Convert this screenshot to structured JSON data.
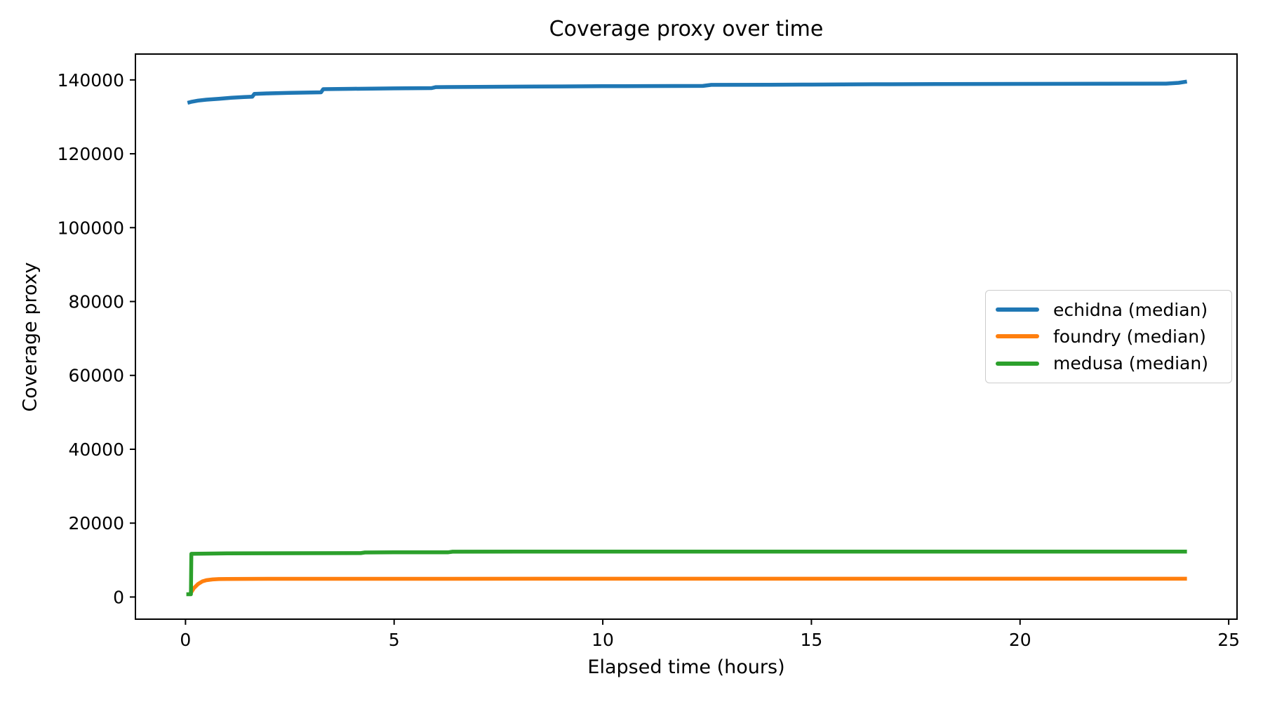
{
  "figure": {
    "title": "Coverage proxy over time",
    "xlabel": "Elapsed time (hours)",
    "ylabel": "Coverage proxy"
  },
  "chart_data": {
    "type": "line",
    "title": "Coverage proxy over time",
    "xlabel": "Elapsed time (hours)",
    "ylabel": "Coverage proxy",
    "xlim": [
      -1.2,
      25.2
    ],
    "ylim": [
      -6000,
      147000
    ],
    "xticks": [
      0,
      5,
      10,
      15,
      20,
      25
    ],
    "yticks": [
      0,
      20000,
      40000,
      60000,
      80000,
      100000,
      120000,
      140000
    ],
    "grid": false,
    "legend_position": "center right",
    "series": [
      {
        "name": "echidna (median)",
        "color": "#1f77b4",
        "points": [
          [
            0.05,
            133800
          ],
          [
            0.15,
            134100
          ],
          [
            0.3,
            134400
          ],
          [
            0.5,
            134650
          ],
          [
            0.8,
            134900
          ],
          [
            1.1,
            135150
          ],
          [
            1.4,
            135350
          ],
          [
            1.6,
            135450
          ],
          [
            1.65,
            136200
          ],
          [
            2.0,
            136350
          ],
          [
            2.5,
            136500
          ],
          [
            3.0,
            136600
          ],
          [
            3.25,
            136650
          ],
          [
            3.3,
            137500
          ],
          [
            4.0,
            137600
          ],
          [
            5.0,
            137700
          ],
          [
            5.9,
            137780
          ],
          [
            6.0,
            138050
          ],
          [
            7.0,
            138120
          ],
          [
            8.0,
            138180
          ],
          [
            9.0,
            138240
          ],
          [
            10.0,
            138290
          ],
          [
            11.0,
            138330
          ],
          [
            12.4,
            138380
          ],
          [
            12.6,
            138650
          ],
          [
            14.0,
            138700
          ],
          [
            15.0,
            138740
          ],
          [
            16.5,
            138820
          ],
          [
            18.0,
            138870
          ],
          [
            20.0,
            138920
          ],
          [
            22.0,
            138960
          ],
          [
            23.5,
            139000
          ],
          [
            23.8,
            139200
          ],
          [
            24.0,
            139550
          ]
        ]
      },
      {
        "name": "foundry (median)",
        "color": "#ff7f0e",
        "points": [
          [
            0.1,
            700
          ],
          [
            0.15,
            1500
          ],
          [
            0.2,
            2400
          ],
          [
            0.3,
            3500
          ],
          [
            0.4,
            4200
          ],
          [
            0.5,
            4550
          ],
          [
            0.65,
            4750
          ],
          [
            0.8,
            4850
          ],
          [
            1.0,
            4900
          ],
          [
            2.0,
            4920
          ],
          [
            5.0,
            4930
          ],
          [
            10.0,
            4940
          ],
          [
            15.0,
            4950
          ],
          [
            20.0,
            4950
          ],
          [
            24.0,
            4950
          ]
        ]
      },
      {
        "name": "medusa (median)",
        "color": "#2ca02c",
        "points": [
          [
            0.02,
            750
          ],
          [
            0.13,
            750
          ],
          [
            0.14,
            11700
          ],
          [
            0.5,
            11760
          ],
          [
            1.0,
            11800
          ],
          [
            2.0,
            11840
          ],
          [
            3.0,
            11870
          ],
          [
            4.2,
            11890
          ],
          [
            4.3,
            12060
          ],
          [
            5.0,
            12090
          ],
          [
            6.3,
            12110
          ],
          [
            6.4,
            12260
          ],
          [
            8.0,
            12280
          ],
          [
            10.0,
            12290
          ],
          [
            12.0,
            12300
          ],
          [
            15.0,
            12300
          ],
          [
            18.0,
            12300
          ],
          [
            21.0,
            12300
          ],
          [
            24.0,
            12300
          ]
        ]
      }
    ]
  }
}
